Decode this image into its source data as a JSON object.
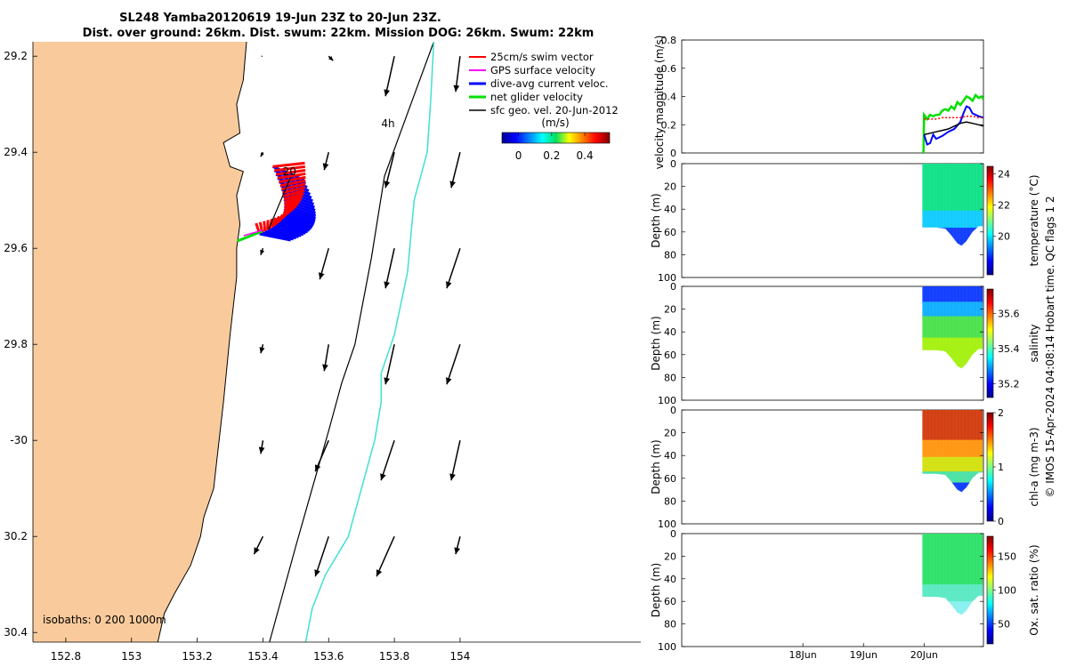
{
  "title": {
    "line1": "SL248 Yamba20120619 19-Jun 23Z to 20-Jun 23Z.",
    "line2": "Dist. over ground: 26km. Dist. swum: 22km. Mission DOG: 26km. Swum: 22km"
  },
  "side_note": "© IMOS 15-Apr-2024 04:08:14 Hobart time. QC flags 1 2",
  "colors": {
    "land": "#f9cb9c",
    "coast": "#000000",
    "isobath_200": "#000000",
    "isobath_1000": "#40e0d0",
    "swim": "#ff0000",
    "gps": "#ff00ff",
    "dive_avg": "#0000ff",
    "net": "#00e000",
    "geo": "#000000"
  },
  "chart_data": [
    {
      "type": "scatter",
      "name": "map",
      "xlim": [
        152.7,
        154.55
      ],
      "ylim": [
        -30.42,
        -29.17
      ],
      "xticks": [
        152.8,
        153,
        153.2,
        153.4,
        153.6,
        153.8,
        154
      ],
      "xtick_labels": [
        "152.8",
        "153",
        "153.2",
        "153.4",
        "153.6",
        "153.8",
        "154"
      ],
      "yticks": [
        -29.2,
        -29.4,
        -29.6,
        -29.8,
        -30,
        -30.2,
        -30.4
      ],
      "ytick_labels": [
        "29.2",
        "29.4",
        "29.6",
        "29.8",
        "-30",
        "30.2",
        "30.4"
      ],
      "isobath_label": "isobaths: 0   200  1000m",
      "coastline": [
        [
          153.35,
          -29.17
        ],
        [
          153.34,
          -29.25
        ],
        [
          153.32,
          -29.3
        ],
        [
          153.33,
          -29.36
        ],
        [
          153.28,
          -29.38
        ],
        [
          153.3,
          -29.43
        ],
        [
          153.34,
          -29.44
        ],
        [
          153.32,
          -29.49
        ],
        [
          153.33,
          -29.55
        ],
        [
          153.32,
          -29.6
        ],
        [
          153.32,
          -29.66
        ],
        [
          153.31,
          -29.72
        ],
        [
          153.3,
          -29.78
        ],
        [
          153.29,
          -29.85
        ],
        [
          153.28,
          -29.92
        ],
        [
          153.27,
          -29.98
        ],
        [
          153.26,
          -30.04
        ],
        [
          153.25,
          -30.1
        ],
        [
          153.22,
          -30.16
        ],
        [
          153.21,
          -30.2
        ],
        [
          153.18,
          -30.26
        ],
        [
          153.13,
          -30.32
        ],
        [
          153.1,
          -30.36
        ],
        [
          153.08,
          -30.42
        ]
      ],
      "isobath_200": [
        [
          153.92,
          -29.17
        ],
        [
          153.85,
          -29.3
        ],
        [
          153.77,
          -29.45
        ],
        [
          153.73,
          -29.62
        ],
        [
          153.68,
          -29.8
        ],
        [
          153.64,
          -29.88
        ],
        [
          153.6,
          -29.98
        ],
        [
          153.55,
          -30.1
        ],
        [
          153.5,
          -30.22
        ],
        [
          153.46,
          -30.32
        ],
        [
          153.42,
          -30.42
        ]
      ],
      "isobath_1000": [
        [
          153.92,
          -29.17
        ],
        [
          153.91,
          -29.3
        ],
        [
          153.9,
          -29.4
        ],
        [
          153.86,
          -29.5
        ],
        [
          153.84,
          -29.65
        ],
        [
          153.8,
          -29.78
        ],
        [
          153.76,
          -29.86
        ],
        [
          153.76,
          -29.92
        ],
        [
          153.74,
          -30.0
        ],
        [
          153.7,
          -30.1
        ],
        [
          153.66,
          -30.2
        ],
        [
          153.59,
          -30.28
        ],
        [
          153.55,
          -30.35
        ],
        [
          153.53,
          -30.42
        ]
      ],
      "geo_arrow_grid": {
        "lons": [
          153.4,
          153.6,
          153.8,
          154.0
        ],
        "lats": [
          -29.2,
          -29.4,
          -29.6,
          -29.8,
          -30.0,
          -30.2
        ],
        "u_ms": [
          [
            0.0,
            0.02,
            -0.04,
            -0.02
          ],
          [
            -0.01,
            -0.02,
            -0.04,
            -0.04
          ],
          [
            -0.01,
            -0.04,
            -0.04,
            -0.06
          ],
          [
            -0.01,
            -0.02,
            -0.04,
            -0.06
          ],
          [
            -0.01,
            -0.06,
            -0.06,
            -0.04
          ],
          [
            -0.04,
            -0.06,
            -0.08,
            -0.02
          ]
        ],
        "v_ms": [
          [
            0.0,
            -0.02,
            -0.18,
            -0.16
          ],
          [
            -0.02,
            -0.08,
            -0.16,
            -0.16
          ],
          [
            -0.03,
            -0.14,
            -0.18,
            -0.18
          ],
          [
            -0.04,
            -0.12,
            -0.18,
            -0.18
          ],
          [
            -0.06,
            -0.14,
            -0.18,
            -0.18
          ],
          [
            -0.08,
            -0.18,
            -0.18,
            -0.08
          ]
        ]
      },
      "glider_track_start": [
        153.43,
        -29.43
      ],
      "glider_track_end": [
        153.39,
        -29.57
      ],
      "glider_track_labels": [
        {
          "text": "20",
          "lon": 153.46,
          "lat": -29.44
        },
        {
          "text": "4h",
          "lon": 153.76,
          "lat": -29.34
        }
      ],
      "legend": [
        "25cm/s swim vector",
        "GPS surface velocity",
        "dive-avg current veloc.",
        "net glider velocity",
        "sfc geo. vel. 20-Jun-2012"
      ],
      "legend_position": "top-right",
      "colorbar": {
        "label": "(m/s)",
        "ticks": [
          0,
          0.2,
          0.4
        ],
        "tick_labels": [
          "0",
          "0.2",
          "0.4"
        ],
        "range": [
          -0.1,
          0.55
        ]
      }
    },
    {
      "type": "line",
      "name": "velocity",
      "ylabel": "velocity magnitude (m/s)",
      "xlim": [
        16.0,
        20.98
      ],
      "ylim": [
        0,
        0.8
      ],
      "yticks": [
        0,
        0.2,
        0.4,
        0.6,
        0.8
      ],
      "ytick_labels": [
        "0",
        "0.2",
        "0.4",
        "0.6",
        "0.8"
      ],
      "series": [
        {
          "color": "#00e000",
          "x": [
            19.99,
            20.0,
            20.05,
            20.1,
            20.15,
            20.2,
            20.25,
            20.3,
            20.35,
            20.4,
            20.45,
            20.5,
            20.55,
            20.6,
            20.65,
            20.7,
            20.75,
            20.8,
            20.85,
            20.9,
            20.95,
            20.98
          ],
          "values": [
            0.0,
            0.27,
            0.24,
            0.27,
            0.26,
            0.27,
            0.27,
            0.3,
            0.31,
            0.3,
            0.33,
            0.31,
            0.36,
            0.34,
            0.37,
            0.4,
            0.39,
            0.37,
            0.41,
            0.39,
            0.4,
            0.38
          ]
        },
        {
          "color": "#0000ff",
          "x": [
            20.0,
            20.05,
            20.1,
            20.15,
            20.2,
            20.3,
            20.4,
            20.5,
            20.6,
            20.65,
            20.7,
            20.75,
            20.8,
            20.9,
            20.98
          ],
          "values": [
            0.13,
            0.06,
            0.07,
            0.13,
            0.1,
            0.12,
            0.15,
            0.17,
            0.22,
            0.28,
            0.33,
            0.32,
            0.28,
            0.26,
            0.25
          ]
        },
        {
          "color": "#ff0000",
          "x": [
            20.0,
            20.1,
            20.2,
            20.3,
            20.4,
            20.5,
            20.6,
            20.7,
            20.8,
            20.9,
            20.98
          ],
          "values": [
            0.24,
            0.24,
            0.24,
            0.25,
            0.25,
            0.25,
            0.25,
            0.26,
            0.26,
            0.25,
            0.25
          ]
        },
        {
          "color": "#000000",
          "x": [
            20.0,
            20.1,
            20.2,
            20.3,
            20.4,
            20.5,
            20.6,
            20.7,
            20.8,
            20.9,
            20.98
          ],
          "values": [
            0.13,
            0.14,
            0.15,
            0.16,
            0.17,
            0.19,
            0.21,
            0.22,
            0.21,
            0.2,
            0.19
          ]
        }
      ]
    },
    {
      "type": "heatmap",
      "name": "temperature",
      "ylabel": "Depth (m)",
      "cblabel": "temperature (°C)",
      "clim": [
        17.5,
        24.5
      ],
      "cbticks": [
        20,
        22,
        24
      ],
      "cbtick_labels": [
        "20",
        "22",
        "24"
      ],
      "ylim": [
        0,
        100
      ],
      "yticks": [
        0,
        20,
        40,
        60,
        80,
        100
      ],
      "ytick_labels": [
        "0",
        "20",
        "40",
        "60",
        "80",
        "100"
      ],
      "x_start": 19.97,
      "x_end": 20.97,
      "bottom_depth_profile": [
        [
          19.97,
          56
        ],
        [
          20.2,
          56
        ],
        [
          20.35,
          57
        ],
        [
          20.45,
          63
        ],
        [
          20.55,
          70
        ],
        [
          20.62,
          72
        ],
        [
          20.7,
          68
        ],
        [
          20.8,
          60
        ],
        [
          20.9,
          55
        ],
        [
          20.97,
          55
        ]
      ],
      "profiles": [
        {
          "dx": 0.0,
          "v": [
            22.0,
            21.8,
            21.5,
            21.0,
            19.5
          ]
        }
      ]
    },
    {
      "type": "heatmap",
      "name": "salinity",
      "ylabel": "Depth (m)",
      "cblabel": "salinity",
      "clim": [
        35.12,
        35.74
      ],
      "cbticks": [
        35.2,
        35.4,
        35.6
      ],
      "cbtick_labels": [
        "35.2",
        "35.4",
        "35.6"
      ],
      "ylim": [
        0,
        100
      ],
      "yticks": [
        0,
        20,
        40,
        60,
        80,
        100
      ],
      "ytick_labels": [
        "0",
        "20",
        "40",
        "60",
        "80",
        "100"
      ],
      "x_start": 19.97,
      "x_end": 20.97,
      "bottom_depth_profile": [
        [
          19.97,
          56
        ],
        [
          20.2,
          56
        ],
        [
          20.35,
          57
        ],
        [
          20.45,
          63
        ],
        [
          20.55,
          70
        ],
        [
          20.62,
          72
        ],
        [
          20.7,
          68
        ],
        [
          20.8,
          60
        ],
        [
          20.9,
          55
        ],
        [
          20.97,
          55
        ]
      ]
    },
    {
      "type": "heatmap",
      "name": "chl-a",
      "ylabel": "Depth (m)",
      "cblabel": "chl-a (mg m-3)",
      "clim": [
        0,
        2
      ],
      "cbticks": [
        0,
        1,
        2
      ],
      "cbtick_labels": [
        "0",
        "1",
        "2"
      ],
      "ylim": [
        0,
        100
      ],
      "yticks": [
        0,
        20,
        40,
        60,
        80,
        100
      ],
      "ytick_labels": [
        "0",
        "20",
        "40",
        "60",
        "80",
        "100"
      ],
      "x_start": 19.97,
      "x_end": 20.97,
      "bottom_depth_profile": [
        [
          19.97,
          56
        ],
        [
          20.2,
          56
        ],
        [
          20.35,
          57
        ],
        [
          20.45,
          63
        ],
        [
          20.55,
          70
        ],
        [
          20.62,
          72
        ],
        [
          20.7,
          68
        ],
        [
          20.8,
          60
        ],
        [
          20.9,
          55
        ],
        [
          20.97,
          55
        ]
      ]
    },
    {
      "type": "heatmap",
      "name": "oxygen",
      "ylabel": "Depth (m)",
      "cblabel": "Ox. sat. ratio (%)",
      "clim": [
        20,
        180
      ],
      "cbticks": [
        50,
        100,
        150
      ],
      "cbtick_labels": [
        "50",
        "100",
        "150"
      ],
      "ylim": [
        0,
        100
      ],
      "yticks": [
        0,
        20,
        40,
        60,
        80,
        100
      ],
      "ytick_labels": [
        "0",
        "20",
        "40",
        "60",
        "80",
        "100"
      ],
      "x_start": 19.97,
      "x_end": 20.97,
      "xticks": [
        18,
        19,
        20
      ],
      "xtick_labels": [
        "18Jun",
        "19Jun",
        "20Jun"
      ],
      "bottom_depth_profile": [
        [
          19.97,
          56
        ],
        [
          20.2,
          56
        ],
        [
          20.35,
          57
        ],
        [
          20.45,
          63
        ],
        [
          20.55,
          70
        ],
        [
          20.62,
          72
        ],
        [
          20.7,
          68
        ],
        [
          20.8,
          60
        ],
        [
          20.9,
          55
        ],
        [
          20.97,
          55
        ]
      ]
    }
  ]
}
